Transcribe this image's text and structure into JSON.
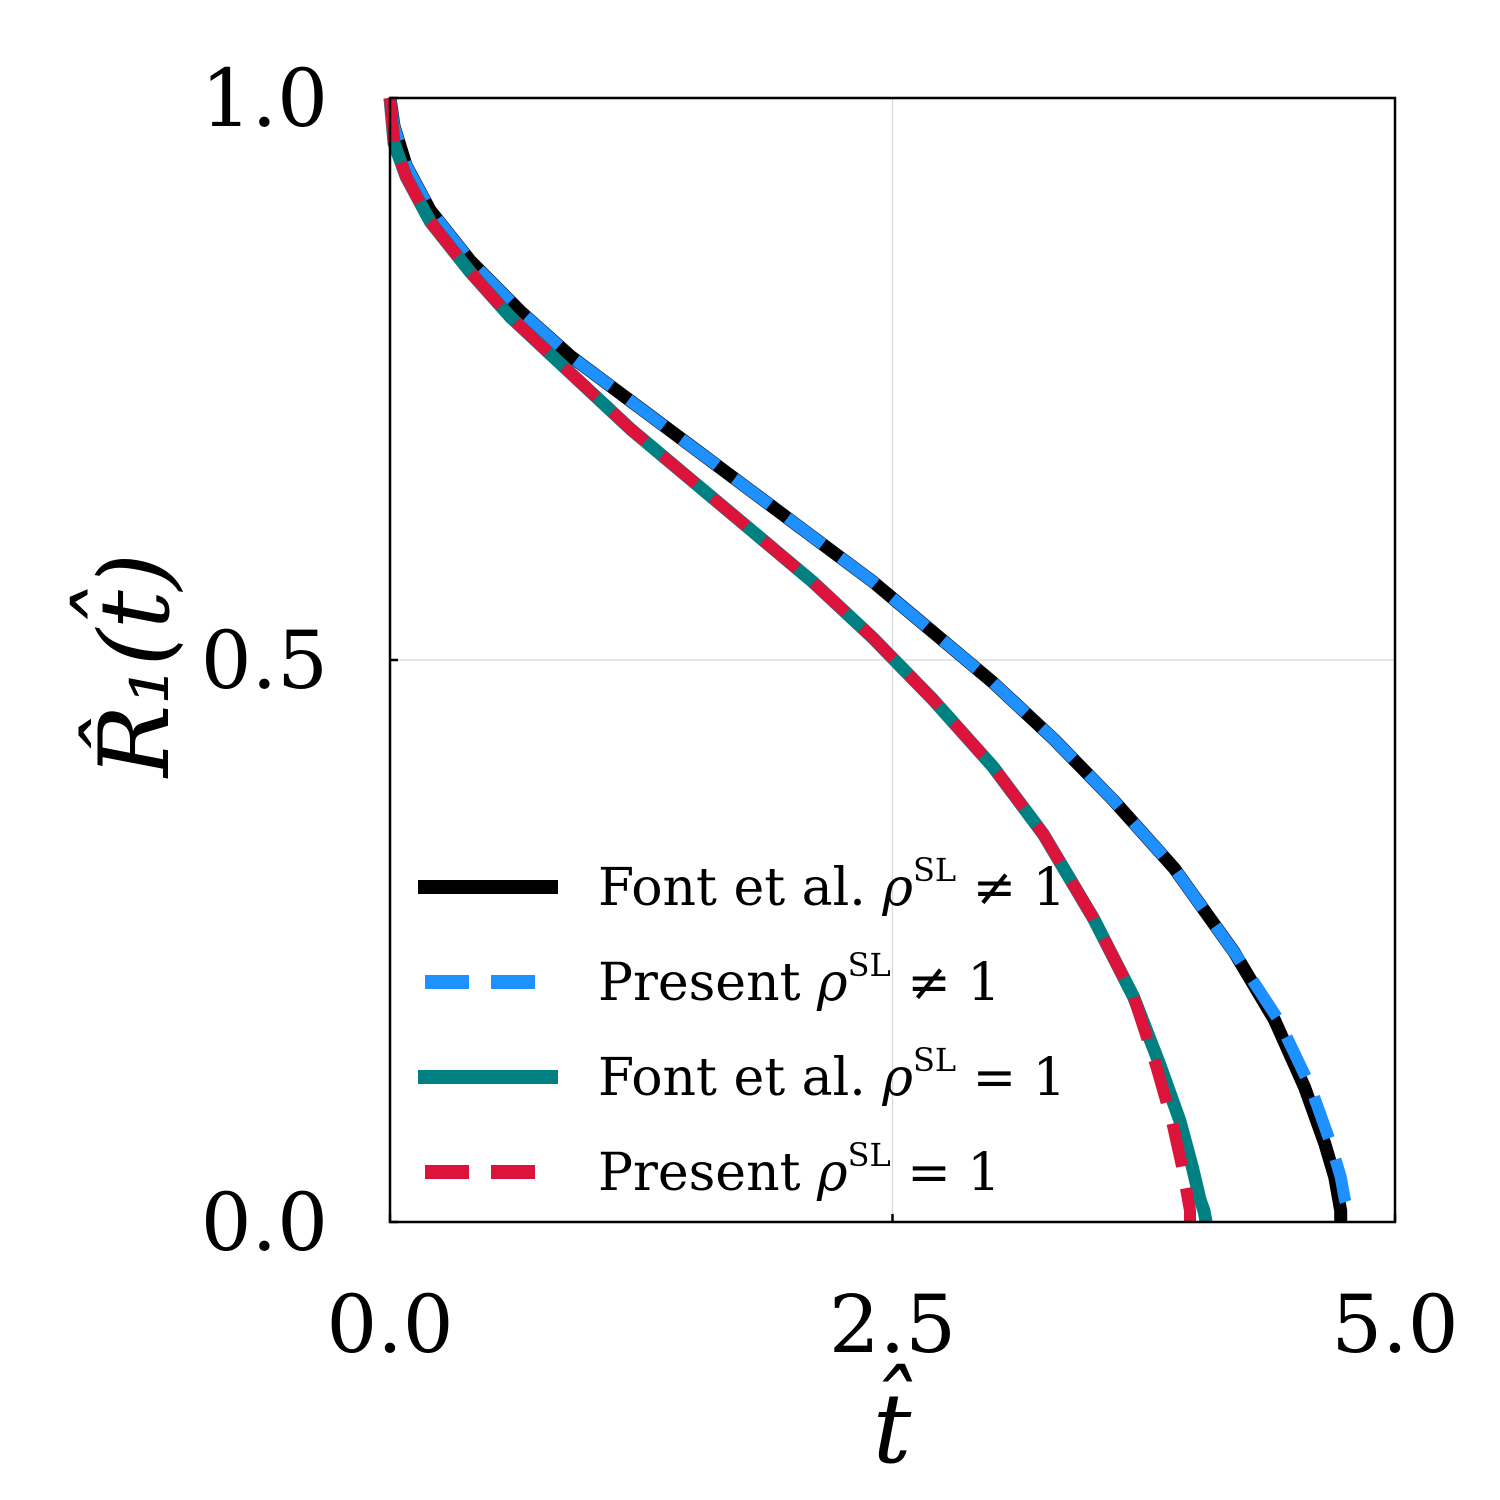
{
  "chart_data": {
    "type": "line",
    "xlabel": "t̂",
    "ylabel": "R̂₁(t̂)",
    "xlim": [
      0,
      5
    ],
    "ylim": [
      0,
      1
    ],
    "x_ticks": [
      "0.0",
      "2.5",
      "5.0"
    ],
    "y_ticks": [
      "0.0",
      "0.5",
      "1.0"
    ],
    "x_tick_values": [
      0,
      2.5,
      5
    ],
    "y_tick_values": [
      0,
      0.5,
      1
    ],
    "grid": true,
    "legend_position": "bottom-left",
    "series": [
      {
        "name": "Font et al.",
        "condition": "≠ 1",
        "color": "#000000",
        "dash": "solid",
        "x": [
          0.0,
          0.02,
          0.08,
          0.2,
          0.4,
          0.65,
          0.9,
          1.2,
          1.5,
          1.8,
          2.1,
          2.4,
          2.7,
          3.0,
          3.3,
          3.6,
          3.9,
          4.2,
          4.4,
          4.55,
          4.65,
          4.7,
          4.72,
          4.73,
          4.73
        ],
        "y": [
          1.0,
          0.975,
          0.94,
          0.9,
          0.855,
          0.81,
          0.77,
          0.73,
          0.69,
          0.65,
          0.61,
          0.57,
          0.525,
          0.48,
          0.43,
          0.375,
          0.315,
          0.24,
          0.18,
          0.12,
          0.07,
          0.04,
          0.02,
          0.01,
          0.0
        ]
      },
      {
        "name": "Present",
        "condition": "≠ 1",
        "color": "#1e90ff",
        "dash": "dashed",
        "x": [
          0.0,
          0.02,
          0.08,
          0.2,
          0.4,
          0.65,
          0.9,
          1.2,
          1.5,
          1.8,
          2.1,
          2.4,
          2.7,
          3.0,
          3.3,
          3.6,
          3.9,
          4.2,
          4.42,
          4.58,
          4.68,
          4.73,
          4.75,
          4.77,
          4.78
        ],
        "y": [
          1.0,
          0.975,
          0.94,
          0.9,
          0.855,
          0.81,
          0.77,
          0.73,
          0.69,
          0.65,
          0.61,
          0.57,
          0.525,
          0.48,
          0.43,
          0.375,
          0.315,
          0.24,
          0.18,
          0.12,
          0.07,
          0.04,
          0.02,
          0.01,
          0.0
        ]
      },
      {
        "name": "Font et al.",
        "condition": "= 1",
        "color": "#008080",
        "dash": "solid",
        "x": [
          0.0,
          0.02,
          0.08,
          0.2,
          0.4,
          0.6,
          0.9,
          1.2,
          1.5,
          1.8,
          2.1,
          2.4,
          2.7,
          3.0,
          3.25,
          3.5,
          3.7,
          3.83,
          3.93,
          3.99,
          4.03,
          4.05,
          4.06
        ],
        "y": [
          1.0,
          0.96,
          0.93,
          0.89,
          0.845,
          0.805,
          0.755,
          0.705,
          0.66,
          0.615,
          0.57,
          0.52,
          0.465,
          0.405,
          0.345,
          0.27,
          0.2,
          0.14,
          0.09,
          0.05,
          0.02,
          0.01,
          0.0
        ]
      },
      {
        "name": "Present",
        "condition": "= 1",
        "color": "#dc143c",
        "dash": "dashed",
        "x": [
          0.0,
          0.02,
          0.08,
          0.2,
          0.4,
          0.6,
          0.9,
          1.2,
          1.5,
          1.8,
          2.1,
          2.4,
          2.7,
          3.0,
          3.25,
          3.5,
          3.7,
          3.81,
          3.89,
          3.94,
          3.97,
          3.98,
          3.98
        ],
        "y": [
          1.0,
          0.96,
          0.93,
          0.89,
          0.845,
          0.805,
          0.755,
          0.705,
          0.66,
          0.615,
          0.57,
          0.52,
          0.465,
          0.405,
          0.345,
          0.27,
          0.2,
          0.14,
          0.09,
          0.05,
          0.02,
          0.01,
          0.0
        ]
      }
    ],
    "legend_symbol_base": "ρ",
    "legend_symbol_sup": "SL"
  }
}
